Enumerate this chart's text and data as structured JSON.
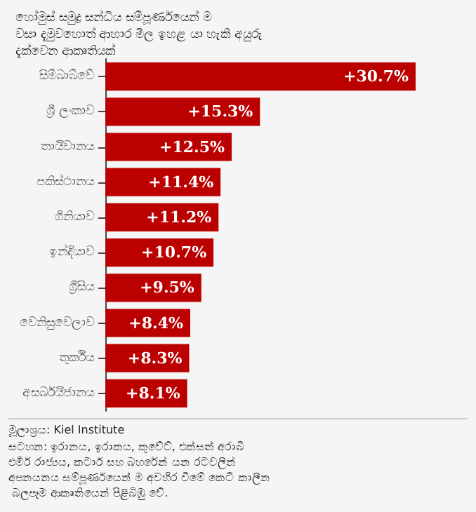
{
  "chart_data": {
    "type": "bar",
    "orientation": "horizontal",
    "title": "හෝමුස් සමුද්‍ර සන්ධිය සම්පූර්ණයෙන් ම වසා දැමුවහොත් ආහාර මිල ඉහළ යා හැකි අයුරු දැක්වෙන ආකෘතියක්",
    "categories": [
      "සිම්බාබ්වේ",
      "ශ්‍රී ලංකාව",
      "තායිවානය",
      "පකිස්ථානය",
      "ගිනියාව",
      "ඉන්දියාව",
      "ග්‍රීසිය",
      "වෙනිසුවෙලාව",
      "තුර්කිය",
      "අසර්බයිජානය"
    ],
    "values": [
      30.7,
      15.3,
      12.5,
      11.4,
      11.2,
      10.7,
      9.5,
      8.4,
      8.3,
      8.1
    ],
    "value_labels": [
      "+30.7%",
      "+15.3%",
      "+12.5%",
      "+11.4%",
      "+11.2%",
      "+10.7%",
      "+9.5%",
      "+8.4%",
      "+8.3%",
      "+8.1%"
    ],
    "color": "#bb0000",
    "annotations": [
      "මූලාශ්‍රය: Kiel Institute",
      "සටහන: ඉරානය, ඉරාකය, කුවේට්, එක්සත් අරාබි එමීර් රාජ්‍යය, කටාර් සහ බහරේන් යන රටවලින් අපනයනය සම්පූර්ණයෙන් ම අවහිර වීමේ කෙටි කාලීන බලපෑම ආකෘතියෙන් පිළිබිඹු වේ."
    ],
    "data_labels": false
  }
}
